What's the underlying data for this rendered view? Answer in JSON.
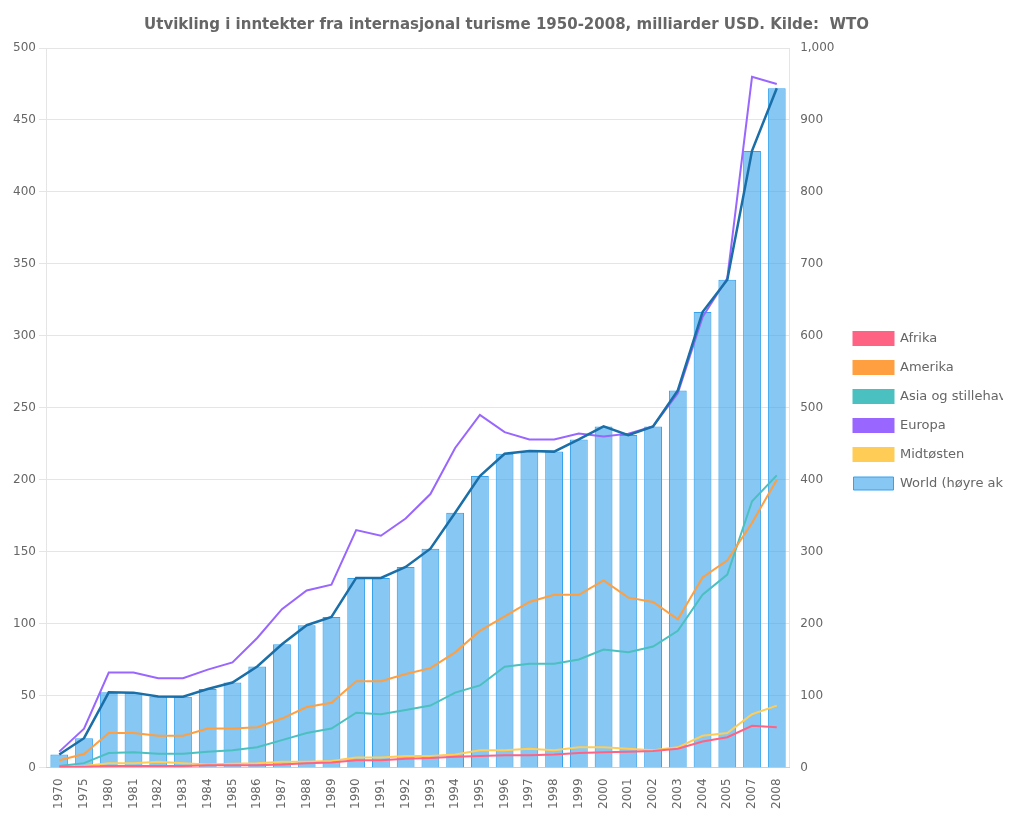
{
  "chart_data": {
    "type": "bar",
    "title": "Utvikling i inntekter fra internasjonal turisme 1950-2008, milliarder USD. Kilde:  WTO",
    "categories": [
      "1970",
      "1975",
      "1980",
      "1981",
      "1982",
      "1983",
      "1984",
      "1985",
      "1986",
      "1987",
      "1988",
      "1989",
      "1990",
      "1991",
      "1992",
      "1993",
      "1994",
      "1995",
      "1996",
      "1997",
      "1998",
      "1999",
      "2000",
      "2001",
      "2002",
      "2003",
      "2004",
      "2005",
      "2007",
      "2008"
    ],
    "series": [
      {
        "name": "World (høyre akse)",
        "type": "bar",
        "axis": "y2",
        "values": [
          17.9,
          40.7,
          104.4,
          104.0,
          98.6,
          98.4,
          109.0,
          118.1,
          140.4,
          171.3,
          197.7,
          209.2,
          263.4,
          263.4,
          278.7,
          304.1,
          354.0,
          405.0,
          436.0,
          440.0,
          439.0,
          456.0,
          474.0,
          462.0,
          474.0,
          524.0,
          633.0,
          678.0,
          857.0,
          944.0
        ]
      },
      {
        "type": "line",
        "axis": "y2",
        "values": [
          17.9,
          40.7,
          104.4,
          104.0,
          98.6,
          98.4,
          109.0,
          118.1,
          140.4,
          171.3,
          197.7,
          209.2,
          263.4,
          263.4,
          278.7,
          304.1,
          354.0,
          405.0,
          436.0,
          440.0,
          439.0,
          456.0,
          474.0,
          462.0,
          474.0,
          524.0,
          633.0,
          678.0,
          857.0,
          944.0
        ]
      },
      {
        "name": "Afrika",
        "type": "line",
        "values": [
          0.3,
          0.5,
          1.0,
          1.0,
          1.0,
          1.0,
          1.5,
          1.5,
          1.5,
          2.0,
          3.0,
          3.5,
          5.0,
          5.0,
          6.0,
          6.5,
          7.5,
          8.0,
          8.5,
          8.5,
          9.0,
          10.0,
          10.5,
          11.0,
          11.5,
          13.0,
          18.0,
          21.0,
          29.0,
          28.0
        ]
      },
      {
        "name": "Amerika",
        "type": "line",
        "values": [
          5.0,
          9.3,
          24.0,
          24.0,
          22.0,
          22.0,
          27.0,
          27.0,
          28.0,
          34.0,
          42.0,
          45.0,
          60.0,
          60.0,
          65.0,
          69.0,
          80.0,
          95.0,
          105.0,
          115.0,
          120.0,
          120.0,
          130.0,
          118.0,
          115.0,
          103.0,
          132.0,
          144.0,
          170.0,
          200.0
        ]
      },
      {
        "name": "Asia og stillehavet",
        "type": "line",
        "values": [
          1.0,
          3.0,
          10.0,
          10.5,
          9.5,
          9.5,
          11.0,
          12.0,
          14.0,
          19.0,
          24.0,
          27.0,
          38.0,
          37.0,
          40.0,
          43.0,
          52.0,
          57.0,
          70.0,
          72.0,
          72.0,
          75.0,
          82.0,
          80.0,
          84.0,
          95.0,
          120.0,
          134.0,
          185.0,
          203.0
        ]
      },
      {
        "name": "Europa",
        "type": "line",
        "values": [
          11.0,
          27.0,
          66.0,
          66.0,
          62.0,
          62.0,
          68.0,
          73.0,
          90.0,
          110.0,
          123.0,
          127.0,
          165.0,
          161.0,
          173.0,
          190.0,
          222.0,
          245.0,
          233.0,
          228.0,
          228.0,
          232.0,
          230.0,
          232.0,
          237.0,
          260.0,
          313.0,
          340.0,
          480.0,
          475.0
        ]
      },
      {
        "name": "Midtøsten",
        "type": "line",
        "values": [
          0.6,
          1.0,
          3.0,
          3.0,
          4.0,
          3.0,
          2.0,
          2.5,
          3.0,
          4.0,
          4.0,
          4.5,
          7.0,
          7.0,
          8.0,
          8.0,
          9.0,
          12.0,
          12.0,
          13.0,
          12.0,
          14.0,
          14.0,
          13.0,
          12.0,
          14.0,
          22.0,
          24.0,
          37.0,
          43.0
        ]
      }
    ],
    "ylim": [
      0,
      500
    ],
    "yticks": [
      0,
      50,
      100,
      150,
      200,
      250,
      300,
      350,
      400,
      450,
      500
    ],
    "y2lim": [
      0,
      1000
    ],
    "y2ticks": [
      0,
      100,
      200,
      300,
      400,
      500,
      600,
      700,
      800,
      900,
      1000
    ],
    "grid": true,
    "legend": "right"
  }
}
